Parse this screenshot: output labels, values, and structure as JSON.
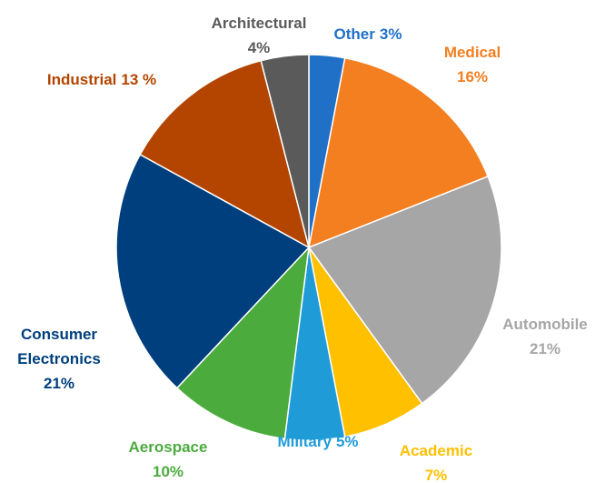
{
  "chart_data": {
    "type": "pie",
    "categories": [
      "Other",
      "Medical",
      "Automobile",
      "Academic",
      "Military",
      "Aerospace",
      "Consumer Electronics",
      "Industrial",
      "Architectural"
    ],
    "values": [
      3,
      16,
      21,
      7,
      5,
      10,
      21,
      13,
      4
    ],
    "value_labels": [
      "3%",
      "16%",
      "21%",
      "7%",
      "5%",
      "10%",
      "21%",
      "13 %",
      "4%"
    ],
    "colors": [
      "#2070c8",
      "#f47f20",
      "#a6a6a6",
      "#ffc000",
      "#1f9bd7",
      "#4bab3d",
      "#003f7d",
      "#b34500",
      "#5a5a5a"
    ]
  }
}
